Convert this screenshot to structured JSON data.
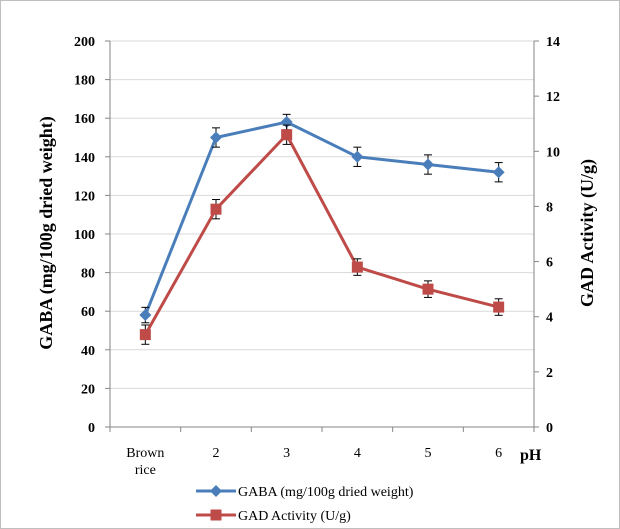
{
  "chart_data": {
    "type": "line",
    "categories": [
      "Brown rice",
      "2",
      "3",
      "4",
      "5",
      "6"
    ],
    "xlabel": "pH",
    "ylabel": "GABA (mg/100g dried weight)",
    "y2label": "GAD Activity  (U/g)",
    "ylim": [
      0,
      200
    ],
    "y2lim": [
      0,
      14
    ],
    "yticks": [
      "0",
      "20",
      "40",
      "60",
      "80",
      "100",
      "120",
      "140",
      "160",
      "180",
      "200"
    ],
    "y2ticks": [
      "0",
      "2",
      "4",
      "6",
      "8",
      "10",
      "12",
      "14"
    ],
    "grid": true,
    "legend_position": "bottom",
    "series": [
      {
        "name": "GABA (mg/100g dried weight)",
        "axis": "left",
        "color": "#4a7ebb",
        "marker": "diamond",
        "values": [
          58,
          150,
          158,
          140,
          136,
          132
        ],
        "error": [
          4,
          5,
          4,
          5,
          5,
          5
        ]
      },
      {
        "name": "GAD Activity  (U/g)",
        "axis": "right",
        "color": "#be4b48",
        "marker": "square",
        "values": [
          3.35,
          7.9,
          10.6,
          5.8,
          5.0,
          4.35
        ],
        "error": [
          0.35,
          0.35,
          0.35,
          0.3,
          0.3,
          0.3
        ]
      }
    ]
  }
}
